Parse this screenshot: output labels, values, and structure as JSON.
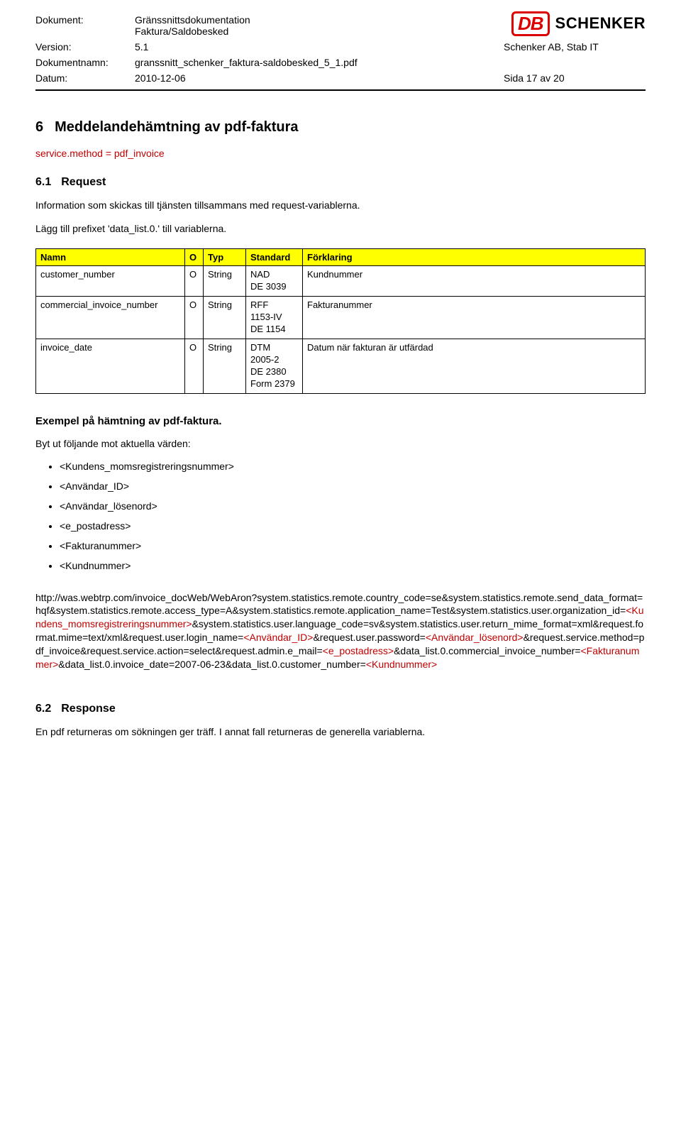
{
  "header": {
    "labels": {
      "dokument": "Dokument:",
      "version": "Version:",
      "dokumentnamn": "Dokumentnamn:",
      "datum": "Datum:"
    },
    "dokument_line1": "Gränssnittsdokumentation",
    "dokument_line2": "Faktura/Saldobesked",
    "version": "5.1",
    "dokumentnamn": "granssnitt_schenker_faktura-saldobesked_5_1.pdf",
    "datum": "2010-12-06",
    "right_top": "Schenker AB, Stab IT",
    "right_bottom": "Sida 17 av 20",
    "logo_db": "DB",
    "logo_text": "SCHENKER"
  },
  "section6": {
    "num": "6",
    "title": "Meddelandehämtning av pdf-faktura",
    "method_line": "service.method = pdf_invoice"
  },
  "section61": {
    "num": "6.1",
    "title": "Request",
    "p1": "Information som skickas till tjänsten tillsammans med request-variablerna.",
    "p2": "Lägg till prefixet 'data_list.0.' till variablerna."
  },
  "table": {
    "headers": {
      "namn": "Namn",
      "o": "O",
      "typ": "Typ",
      "standard": "Standard",
      "forklaring": "Förklaring"
    },
    "rows": [
      {
        "namn": "customer_number",
        "o": "O",
        "typ": "String",
        "std": [
          "NAD",
          "DE 3039"
        ],
        "forklaring": "Kundnummer"
      },
      {
        "namn": "commercial_invoice_number",
        "o": "O",
        "typ": "String",
        "std": [
          "RFF",
          "1153-IV",
          "DE 1154"
        ],
        "forklaring": "Fakturanummer"
      },
      {
        "namn": "invoice_date",
        "o": "O",
        "typ": "String",
        "std": [
          "DTM",
          "2005-2",
          "DE 2380",
          "Form 2379"
        ],
        "forklaring": "Datum när fakturan är utfärdad"
      }
    ]
  },
  "example": {
    "title": "Exempel på hämtning av pdf-faktura.",
    "intro": "Byt ut följande mot aktuella värden:",
    "items": [
      "<Kundens_momsregistreringsnummer>",
      "<Användar_ID>",
      "<Användar_lösenord>",
      "<e_postadress>",
      "<Fakturanummer>",
      "<Kundnummer>"
    ]
  },
  "url": {
    "seg1": "http://was.webtrp.com/invoice_docWeb/WebAron?system.statistics.remote.country_code=se&system.statistics.remote.send_data_format=hqf&system.statistics.remote.access_type=A&system.statistics.remote.application_name=Test&system.statistics.user.organization_id=",
    "ph1": "<Kundens_momsregistreringsnummer>",
    "seg2": "&system.statistics.user.language_code=sv&system.statistics.user.return_mime_format=xml&request.format.mime=text/xml&request.user.login_name=",
    "ph2": "<Användar_ID>",
    "seg3": "&request.user.password=",
    "ph3": "<Användar_lösenord>",
    "seg4": "&request.service.method=pdf_invoice&request.service.action=select&request.admin.e_mail=",
    "ph4": "<e_postadress>",
    "seg5": "&data_list.0.commercial_invoice_number=",
    "ph5": "<Fakturanummer>",
    "seg6": "&data_list.0.invoice_date=2007-06-23&data_list.0.customer_number=",
    "ph6": "<Kundnummer>"
  },
  "section62": {
    "num": "6.2",
    "title": "Response",
    "p1": "En pdf returneras om sökningen ger träff. I annat fall returneras de generella variablerna."
  }
}
